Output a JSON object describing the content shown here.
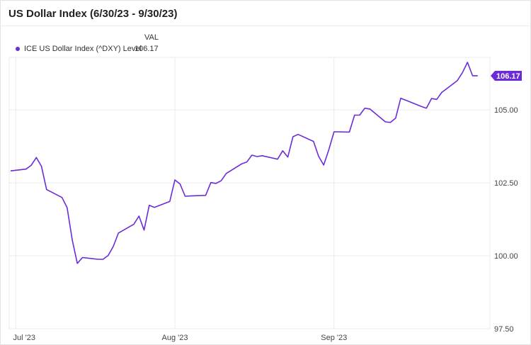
{
  "title": "US Dollar Index (6/30/23 - 9/30/23)",
  "legend": {
    "column_header": "VAL",
    "series_label": "ICE US Dollar Index (^DXY) Level",
    "series_value": "106.17"
  },
  "colors": {
    "series": "#6c2bd9",
    "grid": "#ebebeb",
    "badge_text": "#ffffff"
  },
  "chart_data": {
    "type": "line",
    "title": "US Dollar Index (6/30/23 - 9/30/23)",
    "x_ticks": [
      "Jul '23",
      "Aug '23",
      "Sep '23"
    ],
    "y_ticks": [
      "105.00",
      "102.50",
      "100.00",
      "97.50"
    ],
    "ylim": [
      97.5,
      106.8
    ],
    "grid": true,
    "last_value_label": "106.17",
    "series": [
      {
        "name": "ICE US Dollar Index (^DXY) Level",
        "dates": [
          "2023-06-30",
          "2023-07-03",
          "2023-07-04",
          "2023-07-05",
          "2023-07-06",
          "2023-07-07",
          "2023-07-10",
          "2023-07-11",
          "2023-07-12",
          "2023-07-13",
          "2023-07-14",
          "2023-07-17",
          "2023-07-18",
          "2023-07-19",
          "2023-07-20",
          "2023-07-21",
          "2023-07-24",
          "2023-07-25",
          "2023-07-26",
          "2023-07-27",
          "2023-07-28",
          "2023-07-31",
          "2023-08-01",
          "2023-08-02",
          "2023-08-03",
          "2023-08-04",
          "2023-08-07",
          "2023-08-08",
          "2023-08-09",
          "2023-08-10",
          "2023-08-11",
          "2023-08-14",
          "2023-08-15",
          "2023-08-16",
          "2023-08-17",
          "2023-08-18",
          "2023-08-21",
          "2023-08-22",
          "2023-08-23",
          "2023-08-24",
          "2023-08-25",
          "2023-08-28",
          "2023-08-29",
          "2023-08-30",
          "2023-08-31",
          "2023-09-01",
          "2023-09-04",
          "2023-09-05",
          "2023-09-06",
          "2023-09-07",
          "2023-09-08",
          "2023-09-11",
          "2023-09-12",
          "2023-09-13",
          "2023-09-14",
          "2023-09-15",
          "2023-09-18",
          "2023-09-19",
          "2023-09-20",
          "2023-09-21",
          "2023-09-22",
          "2023-09-25",
          "2023-09-26",
          "2023-09-27",
          "2023-09-28",
          "2023-09-29"
        ],
        "values": [
          102.91,
          102.97,
          103.1,
          103.37,
          103.07,
          102.27,
          102.0,
          101.65,
          100.55,
          99.74,
          99.94,
          99.88,
          99.88,
          100.01,
          100.32,
          100.78,
          101.08,
          101.36,
          100.88,
          101.73,
          101.66,
          101.86,
          102.6,
          102.46,
          102.04,
          102.05,
          102.07,
          102.51,
          102.48,
          102.57,
          102.82,
          103.15,
          103.21,
          103.45,
          103.4,
          103.43,
          103.31,
          103.6,
          103.38,
          104.08,
          104.16,
          103.92,
          103.41,
          103.11,
          103.64,
          104.25,
          104.24,
          104.82,
          104.82,
          105.06,
          105.03,
          104.59,
          104.57,
          104.72,
          105.4,
          105.33,
          105.12,
          105.06,
          105.39,
          105.36,
          105.6,
          106.0,
          106.27,
          106.63,
          106.17,
          106.17
        ]
      }
    ]
  }
}
